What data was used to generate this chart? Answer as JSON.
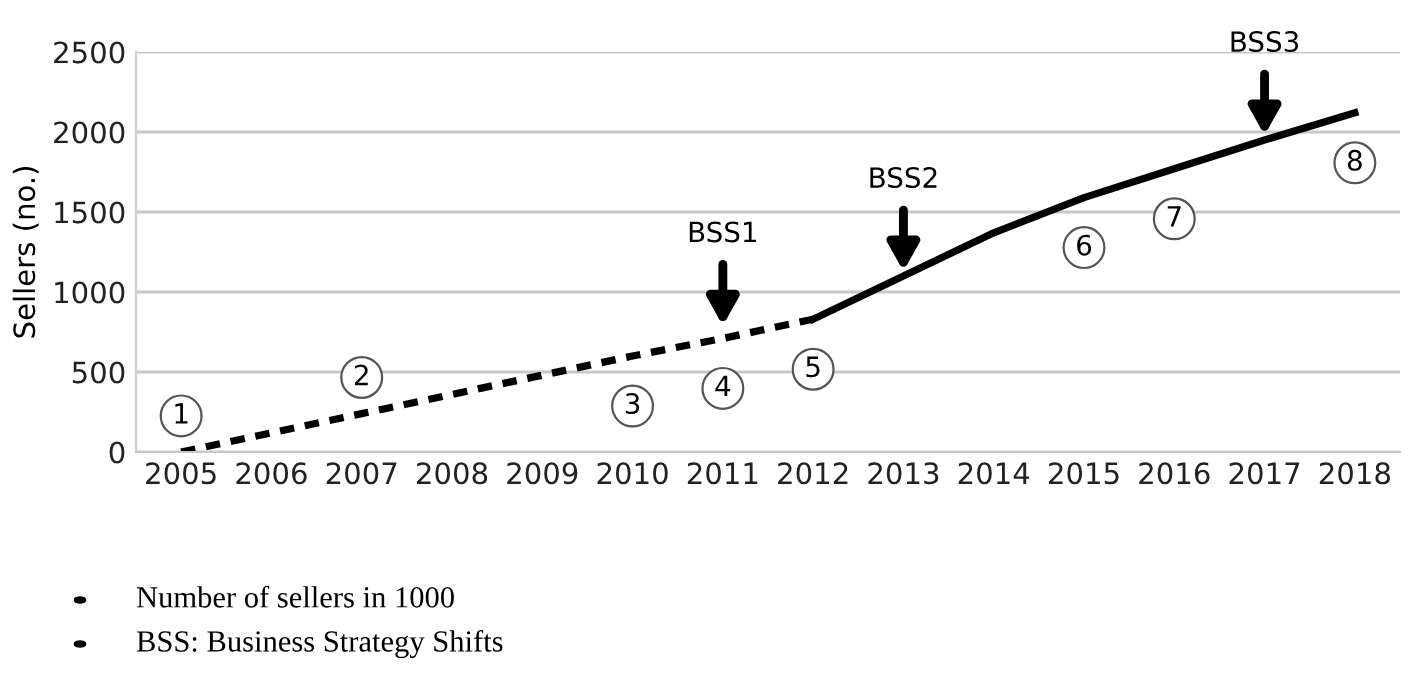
{
  "chart_data": {
    "type": "line",
    "ylabel": "Sellers (no.)",
    "categories": [
      "2005",
      "2006",
      "2007",
      "2008",
      "2009",
      "2010",
      "2011",
      "2012",
      "2013",
      "2014",
      "2015",
      "2016",
      "2017",
      "2018"
    ],
    "series": [
      {
        "color": "#000000",
        "line_style": "dashed",
        "values": [
          0,
          120,
          240,
          360,
          480,
          600,
          710,
          830,
          null,
          null,
          null,
          null,
          null,
          null
        ]
      },
      {
        "color": "#000000",
        "line_style": "solid",
        "values": [
          null,
          null,
          null,
          null,
          null,
          null,
          null,
          830,
          1100,
          1370,
          1590,
          1770,
          1950,
          2120
        ]
      }
    ],
    "ylim": [
      0,
      2500
    ],
    "yticks": [
      0,
      500,
      1000,
      1500,
      2000,
      2500
    ],
    "grid": "y",
    "marker": "none",
    "annotations": [
      {
        "text": "BSS1",
        "x": "2011",
        "y": 790
      },
      {
        "text": "BSS2",
        "x": "2013",
        "y": 1130
      },
      {
        "text": "BSS3",
        "x": "2017",
        "y": 1980
      },
      {
        "text": "1",
        "x": "2005",
        "y": 0
      },
      {
        "text": "2",
        "x": "2007",
        "y": 240
      },
      {
        "text": "3",
        "x": "2010",
        "y": 600
      },
      {
        "text": "4",
        "x": "2011",
        "y": 710
      },
      {
        "text": "5",
        "x": "2012",
        "y": 830
      },
      {
        "text": "6",
        "x": "2015",
        "y": 1590
      },
      {
        "text": "7",
        "x": "2016",
        "y": 1770
      },
      {
        "text": "8",
        "x": "2018",
        "y": 2120
      },
      "Number of sellers in 1000",
      "BSS: Business Strategy Shifts"
    ]
  }
}
